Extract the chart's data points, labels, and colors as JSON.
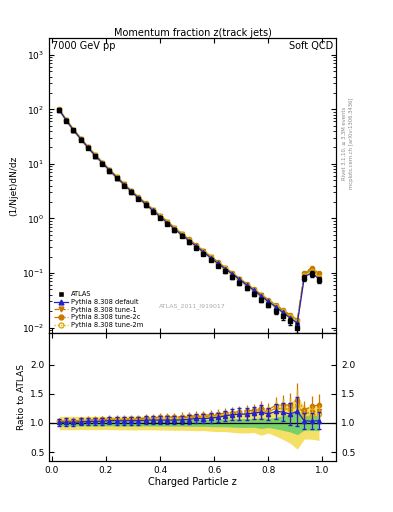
{
  "title_top_left": "7000 GeV pp",
  "title_top_right": "Soft QCD",
  "plot_title": "Momentum fraction z(track jets)",
  "ylabel_main": "(1/Njet)dN/dz",
  "ylabel_ratio": "Ratio to ATLAS",
  "xlabel": "Charged Particle z",
  "right_label": "Rivet 3.1.10, ≥ 3.3M events",
  "right_label2": "mcplots.cern.ch [arXiv:1306.3436]",
  "watermark": "ATLAS_2011_I919017",
  "ylim_main": [
    0.008,
    2000
  ],
  "ylim_ratio": [
    0.35,
    2.55
  ],
  "yticks_ratio": [
    0.5,
    1.0,
    1.5,
    2.0
  ],
  "atlas_x": [
    0.027,
    0.053,
    0.08,
    0.107,
    0.133,
    0.16,
    0.187,
    0.213,
    0.24,
    0.267,
    0.293,
    0.32,
    0.347,
    0.373,
    0.4,
    0.427,
    0.453,
    0.48,
    0.507,
    0.533,
    0.56,
    0.587,
    0.613,
    0.64,
    0.667,
    0.693,
    0.72,
    0.747,
    0.773,
    0.8,
    0.827,
    0.853,
    0.88,
    0.907,
    0.933,
    0.96,
    0.987
  ],
  "atlas_y": [
    97,
    62,
    41,
    28,
    19.5,
    13.8,
    10.0,
    7.3,
    5.4,
    4.0,
    3.0,
    2.28,
    1.74,
    1.33,
    1.02,
    0.79,
    0.61,
    0.474,
    0.368,
    0.287,
    0.224,
    0.175,
    0.137,
    0.107,
    0.084,
    0.066,
    0.052,
    0.041,
    0.032,
    0.026,
    0.02,
    0.016,
    0.013,
    0.01,
    0.082,
    0.097,
    0.075
  ],
  "atlas_yerr": [
    5,
    3.2,
    2.1,
    1.4,
    1.0,
    0.7,
    0.5,
    0.37,
    0.28,
    0.21,
    0.16,
    0.12,
    0.09,
    0.07,
    0.055,
    0.043,
    0.034,
    0.026,
    0.021,
    0.017,
    0.013,
    0.011,
    0.009,
    0.007,
    0.006,
    0.005,
    0.004,
    0.003,
    0.003,
    0.002,
    0.002,
    0.002,
    0.002,
    0.002,
    0.01,
    0.012,
    0.01
  ],
  "pd_y": [
    98,
    63,
    41.5,
    28.5,
    20.0,
    14.2,
    10.3,
    7.6,
    5.6,
    4.15,
    3.12,
    2.37,
    1.82,
    1.4,
    1.07,
    0.83,
    0.64,
    0.5,
    0.39,
    0.31,
    0.24,
    0.19,
    0.15,
    0.12,
    0.096,
    0.076,
    0.06,
    0.048,
    0.038,
    0.03,
    0.024,
    0.019,
    0.015,
    0.012,
    0.085,
    0.1,
    0.078
  ],
  "t1_y": [
    99,
    63.5,
    42,
    29,
    20.3,
    14.4,
    10.5,
    7.7,
    5.7,
    4.22,
    3.18,
    2.42,
    1.86,
    1.43,
    1.1,
    0.855,
    0.662,
    0.516,
    0.403,
    0.316,
    0.248,
    0.196,
    0.154,
    0.122,
    0.097,
    0.077,
    0.061,
    0.049,
    0.039,
    0.031,
    0.025,
    0.02,
    0.016,
    0.013,
    0.095,
    0.115,
    0.09
  ],
  "t2c_y": [
    100,
    64,
    42.5,
    29.2,
    20.5,
    14.6,
    10.6,
    7.8,
    5.75,
    4.27,
    3.21,
    2.45,
    1.88,
    1.45,
    1.12,
    0.87,
    0.674,
    0.525,
    0.411,
    0.323,
    0.254,
    0.2,
    0.158,
    0.125,
    0.099,
    0.079,
    0.063,
    0.05,
    0.04,
    0.032,
    0.026,
    0.021,
    0.017,
    0.014,
    0.1,
    0.125,
    0.098
  ],
  "t2m_y": [
    98.5,
    63,
    41.8,
    28.7,
    20.2,
    14.3,
    10.4,
    7.65,
    5.65,
    4.18,
    3.15,
    2.4,
    1.84,
    1.42,
    1.09,
    0.845,
    0.655,
    0.51,
    0.398,
    0.313,
    0.246,
    0.194,
    0.153,
    0.121,
    0.096,
    0.076,
    0.061,
    0.048,
    0.038,
    0.031,
    0.025,
    0.02,
    0.016,
    0.013,
    0.09,
    0.11,
    0.086
  ],
  "pd_yerr": [
    3,
    2,
    1.3,
    0.9,
    0.65,
    0.46,
    0.34,
    0.25,
    0.19,
    0.14,
    0.11,
    0.083,
    0.065,
    0.05,
    0.039,
    0.031,
    0.024,
    0.019,
    0.015,
    0.012,
    0.0095,
    0.0076,
    0.0061,
    0.0049,
    0.0039,
    0.0031,
    0.0025,
    0.002,
    0.0016,
    0.0013,
    0.0011,
    0.0009,
    0.0007,
    0.0006,
    0.0042,
    0.005,
    0.0039
  ],
  "t1_yerr": [
    3,
    2,
    1.3,
    0.9,
    0.65,
    0.46,
    0.34,
    0.25,
    0.19,
    0.14,
    0.11,
    0.083,
    0.065,
    0.05,
    0.039,
    0.031,
    0.024,
    0.019,
    0.015,
    0.012,
    0.0095,
    0.0076,
    0.0061,
    0.0049,
    0.0039,
    0.0031,
    0.0025,
    0.002,
    0.0016,
    0.0013,
    0.0011,
    0.0009,
    0.0007,
    0.0006,
    0.0047,
    0.0058,
    0.0045
  ],
  "t2c_yerr": [
    3,
    2,
    1.3,
    0.9,
    0.65,
    0.46,
    0.34,
    0.25,
    0.19,
    0.14,
    0.11,
    0.083,
    0.065,
    0.05,
    0.039,
    0.031,
    0.024,
    0.019,
    0.015,
    0.012,
    0.0095,
    0.0076,
    0.0061,
    0.0049,
    0.0039,
    0.0031,
    0.0025,
    0.002,
    0.0016,
    0.0013,
    0.0011,
    0.0009,
    0.0007,
    0.0006,
    0.005,
    0.0063,
    0.0049
  ],
  "t2m_yerr": [
    3,
    2,
    1.3,
    0.9,
    0.65,
    0.46,
    0.34,
    0.25,
    0.19,
    0.14,
    0.11,
    0.083,
    0.065,
    0.05,
    0.039,
    0.031,
    0.024,
    0.019,
    0.015,
    0.012,
    0.0095,
    0.0076,
    0.0061,
    0.0049,
    0.0039,
    0.0031,
    0.0025,
    0.002,
    0.0016,
    0.0013,
    0.0011,
    0.0009,
    0.0007,
    0.0006,
    0.0045,
    0.0055,
    0.0043
  ],
  "colors": {
    "atlas": "#000000",
    "default": "#2222cc",
    "tune_dark": "#cc7700",
    "tune_light": "#ddaa00",
    "band_yellow": "#eecc00",
    "band_green": "#44cc66"
  }
}
